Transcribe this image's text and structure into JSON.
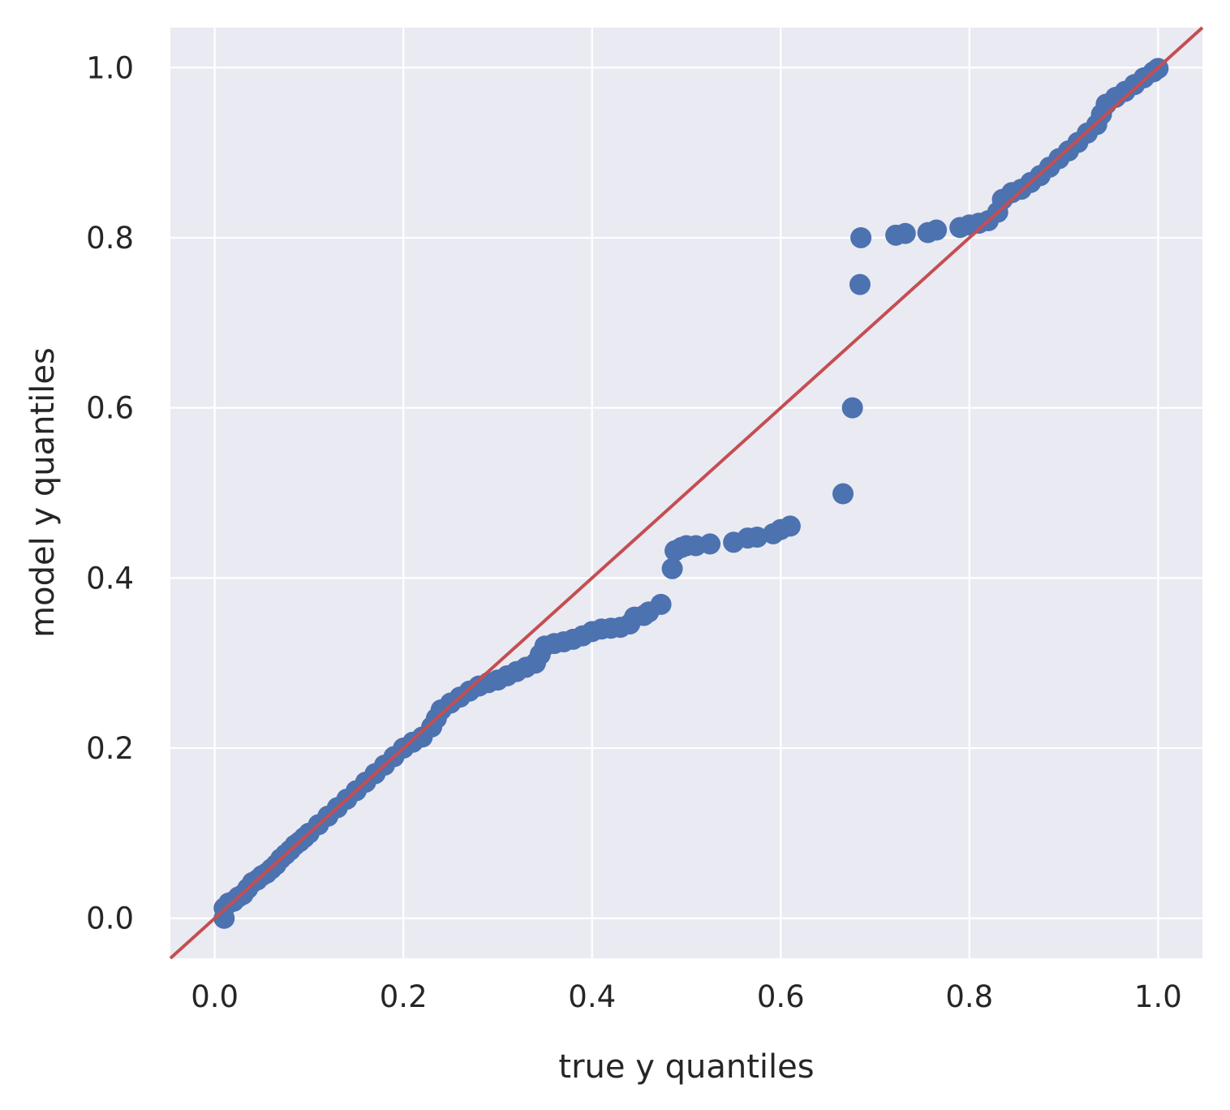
{
  "chart_data": {
    "type": "scatter",
    "title": "",
    "xlabel": "true y quantiles",
    "ylabel": "model y quantiles",
    "xlim": [
      -0.047,
      1.047
    ],
    "ylim": [
      -0.047,
      1.047
    ],
    "xticks": [
      0.0,
      0.2,
      0.4,
      0.6,
      0.8,
      1.0
    ],
    "yticks": [
      0.0,
      0.2,
      0.4,
      0.6,
      0.8,
      1.0
    ],
    "xtick_labels": [
      "0.0",
      "0.2",
      "0.4",
      "0.6",
      "0.8",
      "1.0"
    ],
    "ytick_labels": [
      "0.0",
      "0.2",
      "0.4",
      "0.6",
      "0.8",
      "1.0"
    ],
    "grid": true,
    "style": "seaborn darkgrid",
    "colors": {
      "background": "#eaeaf2",
      "grid": "#ffffff",
      "points": "#4c72b0",
      "reference_line": "#c44e52"
    },
    "series": [
      {
        "type": "scatter",
        "points": [
          [
            0.01,
            0.0
          ],
          [
            0.01,
            0.012
          ],
          [
            0.015,
            0.018
          ],
          [
            0.02,
            0.02
          ],
          [
            0.025,
            0.025
          ],
          [
            0.03,
            0.028
          ],
          [
            0.035,
            0.035
          ],
          [
            0.04,
            0.042
          ],
          [
            0.045,
            0.045
          ],
          [
            0.05,
            0.05
          ],
          [
            0.055,
            0.053
          ],
          [
            0.06,
            0.058
          ],
          [
            0.065,
            0.063
          ],
          [
            0.07,
            0.07
          ],
          [
            0.075,
            0.075
          ],
          [
            0.08,
            0.08
          ],
          [
            0.085,
            0.086
          ],
          [
            0.09,
            0.09
          ],
          [
            0.095,
            0.095
          ],
          [
            0.1,
            0.1
          ],
          [
            0.11,
            0.11
          ],
          [
            0.12,
            0.12
          ],
          [
            0.13,
            0.13
          ],
          [
            0.14,
            0.14
          ],
          [
            0.15,
            0.15
          ],
          [
            0.16,
            0.16
          ],
          [
            0.17,
            0.17
          ],
          [
            0.18,
            0.18
          ],
          [
            0.19,
            0.19
          ],
          [
            0.2,
            0.2
          ],
          [
            0.21,
            0.207
          ],
          [
            0.22,
            0.213
          ],
          [
            0.23,
            0.225
          ],
          [
            0.235,
            0.235
          ],
          [
            0.24,
            0.245
          ],
          [
            0.25,
            0.253
          ],
          [
            0.26,
            0.26
          ],
          [
            0.27,
            0.267
          ],
          [
            0.28,
            0.273
          ],
          [
            0.29,
            0.277
          ],
          [
            0.3,
            0.28
          ],
          [
            0.31,
            0.285
          ],
          [
            0.32,
            0.29
          ],
          [
            0.33,
            0.295
          ],
          [
            0.34,
            0.3
          ],
          [
            0.345,
            0.31
          ],
          [
            0.35,
            0.32
          ],
          [
            0.36,
            0.323
          ],
          [
            0.37,
            0.325
          ],
          [
            0.38,
            0.328
          ],
          [
            0.39,
            0.332
          ],
          [
            0.4,
            0.337
          ],
          [
            0.41,
            0.34
          ],
          [
            0.42,
            0.341
          ],
          [
            0.43,
            0.342
          ],
          [
            0.44,
            0.346
          ],
          [
            0.445,
            0.354
          ],
          [
            0.455,
            0.356
          ],
          [
            0.46,
            0.36
          ],
          [
            0.473,
            0.369
          ],
          [
            0.485,
            0.411
          ],
          [
            0.488,
            0.432
          ],
          [
            0.495,
            0.436
          ],
          [
            0.5,
            0.438
          ],
          [
            0.51,
            0.438
          ],
          [
            0.525,
            0.44
          ],
          [
            0.55,
            0.442
          ],
          [
            0.565,
            0.447
          ],
          [
            0.575,
            0.448
          ],
          [
            0.592,
            0.452
          ],
          [
            0.6,
            0.457
          ],
          [
            0.61,
            0.461
          ],
          [
            0.666,
            0.499
          ],
          [
            0.676,
            0.6
          ],
          [
            0.684,
            0.745
          ],
          [
            0.685,
            0.8
          ],
          [
            0.722,
            0.803
          ],
          [
            0.732,
            0.805
          ],
          [
            0.756,
            0.806
          ],
          [
            0.765,
            0.809
          ],
          [
            0.79,
            0.812
          ],
          [
            0.8,
            0.815
          ],
          [
            0.81,
            0.817
          ],
          [
            0.82,
            0.82
          ],
          [
            0.83,
            0.83
          ],
          [
            0.835,
            0.845
          ],
          [
            0.845,
            0.853
          ],
          [
            0.855,
            0.857
          ],
          [
            0.865,
            0.865
          ],
          [
            0.875,
            0.873
          ],
          [
            0.885,
            0.883
          ],
          [
            0.895,
            0.893
          ],
          [
            0.905,
            0.902
          ],
          [
            0.915,
            0.912
          ],
          [
            0.925,
            0.923
          ],
          [
            0.935,
            0.933
          ],
          [
            0.94,
            0.945
          ],
          [
            0.945,
            0.957
          ],
          [
            0.955,
            0.965
          ],
          [
            0.965,
            0.972
          ],
          [
            0.975,
            0.98
          ],
          [
            0.985,
            0.988
          ],
          [
            0.995,
            0.995
          ],
          [
            1.0,
            0.999
          ]
        ]
      },
      {
        "type": "line",
        "x": [
          -0.047,
          1.047
        ],
        "y": [
          -0.047,
          1.047
        ]
      }
    ]
  }
}
